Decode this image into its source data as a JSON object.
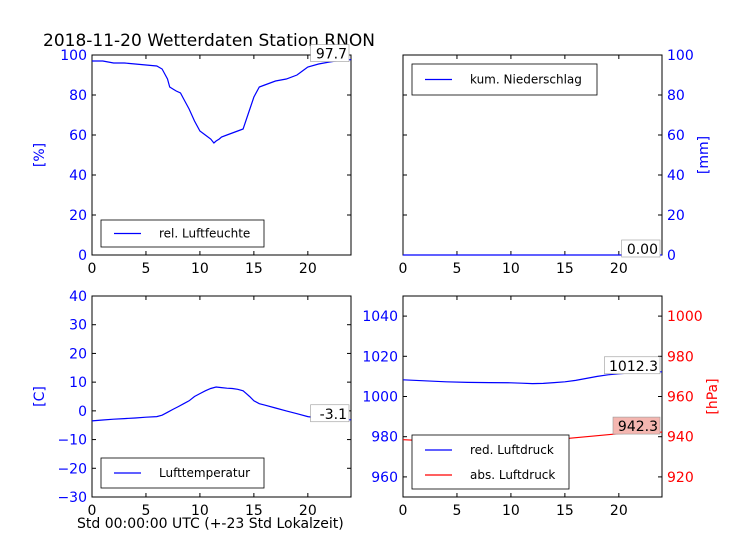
{
  "figure": {
    "title": "2018-11-20 Wetterdaten Station RNON",
    "xlabel": "Std 00:00:00 UTC (+-23 Std Lokalzeit)"
  },
  "chart_data": [
    {
      "type": "line",
      "panel": "top-left",
      "ylabel": "[%]",
      "xlim": [
        0,
        24
      ],
      "ylim": [
        0,
        100
      ],
      "xticks": [
        "0",
        "5",
        "10",
        "15",
        "20"
      ],
      "yticks": [
        "0",
        "20",
        "40",
        "60",
        "80",
        "100"
      ],
      "tick_color": "#0000ff",
      "legend": {
        "position": "lower-left"
      },
      "annotation": "97.7",
      "series": [
        {
          "name": "rel. Luftfeuchte",
          "color": "#0000ff",
          "x": [
            0,
            1,
            2,
            3,
            4,
            5,
            6,
            6.5,
            7,
            7.2,
            7.5,
            7.8,
            8.2,
            8.5,
            9,
            9.5,
            10,
            10.5,
            11,
            11.3,
            11.5,
            11.8,
            12,
            12.5,
            13,
            13.5,
            14,
            14.5,
            15,
            15.5,
            16,
            17,
            18,
            19,
            19.5,
            20,
            21,
            22,
            23,
            24
          ],
          "y": [
            97,
            97,
            96,
            96,
            95.5,
            95,
            94.5,
            93,
            88,
            84,
            83,
            82,
            81,
            78,
            73,
            67,
            62,
            60,
            58,
            56,
            57,
            58,
            59,
            60,
            61,
            62,
            63,
            71,
            79,
            84,
            85,
            87,
            88,
            90,
            92,
            94,
            95.5,
            96.5,
            97.3,
            97.7
          ]
        }
      ]
    },
    {
      "type": "line",
      "panel": "top-right",
      "ylabel": "[mm]",
      "xlim": [
        0,
        24
      ],
      "ylim": [
        0,
        100
      ],
      "xticks": [
        "0",
        "5",
        "10",
        "15",
        "20"
      ],
      "yticks": [
        "0",
        "20",
        "40",
        "60",
        "80",
        "100"
      ],
      "tick_color": "#0000ff",
      "legend": {
        "position": "upper-left"
      },
      "annotation": "0.00",
      "series": [
        {
          "name": "kum. Niederschlag",
          "color": "#0000ff",
          "x": [
            0,
            24
          ],
          "y": [
            0,
            0
          ]
        }
      ]
    },
    {
      "type": "line",
      "panel": "bottom-left",
      "ylabel": "[C]",
      "xlim": [
        0,
        24
      ],
      "ylim": [
        -30,
        40
      ],
      "xticks": [
        "0",
        "5",
        "10",
        "15",
        "20"
      ],
      "yticks": [
        "−30",
        "−20",
        "−10",
        "0",
        "10",
        "20",
        "30",
        "40"
      ],
      "tick_color": "#0000ff",
      "legend": {
        "position": "lower-left"
      },
      "annotation": "-3.1",
      "series": [
        {
          "name": "Lufttemperatur",
          "color": "#0000ff",
          "x": [
            0,
            1,
            2,
            3,
            4,
            5,
            6,
            6.5,
            7,
            7.5,
            8,
            8.5,
            9,
            9.5,
            10,
            10.5,
            11,
            11.5,
            12,
            12.5,
            13,
            13.5,
            14,
            14.3,
            14.6,
            15,
            15.5,
            16,
            17,
            18,
            19,
            20,
            21,
            22,
            23,
            24
          ],
          "y": [
            -3.5,
            -3.2,
            -2.9,
            -2.7,
            -2.5,
            -2.2,
            -2,
            -1.5,
            -0.5,
            0.5,
            1.5,
            2.5,
            3.5,
            5,
            6,
            7,
            7.8,
            8.3,
            8.1,
            7.9,
            7.8,
            7.5,
            7,
            6,
            5,
            3.5,
            2.5,
            2,
            1,
            0,
            -1,
            -2,
            -2.5,
            -2.8,
            -3,
            -3.1
          ]
        }
      ]
    },
    {
      "type": "line",
      "panel": "bottom-right",
      "xlim": [
        0,
        24
      ],
      "ylim": [
        950,
        1050
      ],
      "xticks": [
        "0",
        "5",
        "10",
        "15",
        "20"
      ],
      "yticks": [
        "960",
        "980",
        "1000",
        "1020",
        "1040"
      ],
      "tick_color": "#0000ff",
      "legend": {
        "position": "lower-left"
      },
      "annotation": "1012.3",
      "series": [
        {
          "name": "red. Luftdruck",
          "color": "#0000ff",
          "axis": "left",
          "x": [
            0,
            2,
            4,
            6,
            8,
            10,
            11,
            12,
            13,
            14,
            15,
            16,
            17,
            18,
            19,
            20,
            21,
            22,
            23,
            24
          ],
          "y": [
            1008.3,
            1007.8,
            1007.3,
            1007,
            1006.9,
            1006.8,
            1006.6,
            1006.4,
            1006.5,
            1006.9,
            1007.3,
            1008,
            1009,
            1010,
            1010.8,
            1011.3,
            1011.7,
            1012,
            1012.2,
            1012.3
          ]
        }
      ],
      "secondary_axis": {
        "ylabel": "[hPa]",
        "color": "#ff0000",
        "ylim": [
          910,
          1010
        ],
        "yticks": [
          "920",
          "940",
          "960",
          "980",
          "1000"
        ],
        "annotation": "942.3",
        "series": [
          {
            "name": "abs. Luftdruck",
            "color": "#ff0000",
            "x": [
              0,
              2,
              4,
              6,
              8,
              10,
              11,
              12,
              13,
              14,
              15,
              16,
              17,
              18,
              19,
              20,
              21,
              22,
              23,
              24
            ],
            "y": [
              938.5,
              938,
              937.6,
              937.4,
              937.9,
              938.6,
              939,
              939.1,
              939.2,
              939.1,
              939,
              939.5,
              940,
              940.5,
              941,
              941.5,
              941.8,
              942,
              942.2,
              942.3
            ]
          }
        ]
      }
    }
  ]
}
